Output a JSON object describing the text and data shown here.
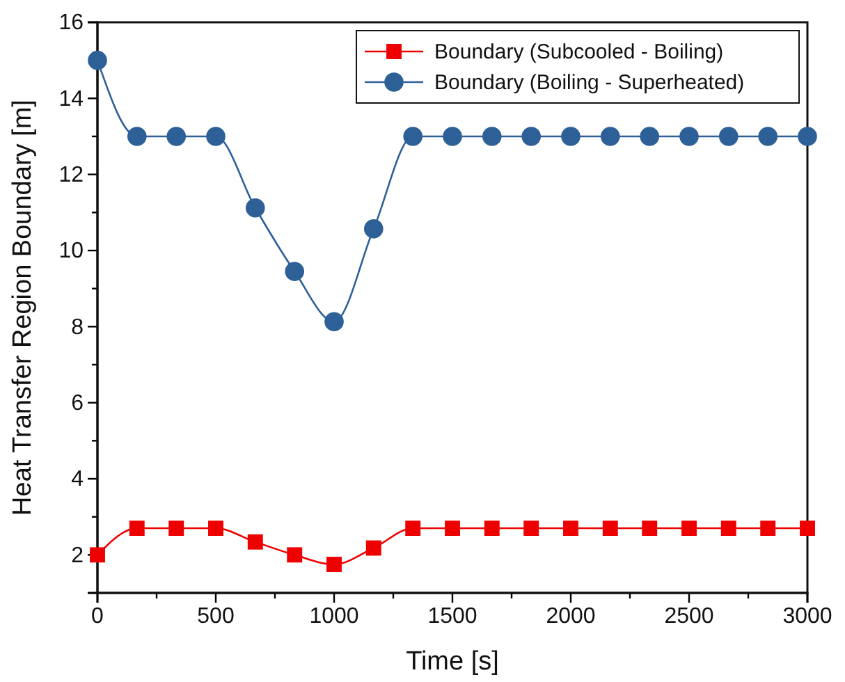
{
  "chart_data": {
    "type": "line",
    "xlabel": "Time [s]",
    "ylabel": "Heat Transfer Region Boundary [m]",
    "xlim": [
      0,
      3000
    ],
    "ylim": [
      1,
      16
    ],
    "xticks": [
      0,
      {
        "value": 250,
        "label": null
      },
      500,
      {
        "value": 750,
        "label": null
      },
      1000,
      {
        "value": 1250,
        "label": null
      },
      1500,
      {
        "value": 1750,
        "label": null
      },
      2000,
      {
        "value": 2250,
        "label": null
      },
      2500,
      {
        "value": 2750,
        "label": null
      },
      3000
    ],
    "yticks": [
      {
        "value": 1,
        "label": null
      },
      2,
      {
        "value": 3,
        "label": null
      },
      4,
      {
        "value": 5,
        "label": null
      },
      6,
      {
        "value": 7,
        "label": null
      },
      8,
      {
        "value": 9,
        "label": null
      },
      10,
      {
        "value": 11,
        "label": null
      },
      12,
      {
        "value": 13,
        "label": null
      },
      14,
      {
        "value": 15,
        "label": null
      },
      16
    ],
    "legend": "top right",
    "line_style": "solid",
    "grid": false,
    "series": [
      {
        "name": "Boundary (Subcooled - Boiling)",
        "color": "#ee0000",
        "marker": "square",
        "x": [
          0,
          167,
          333,
          500,
          667,
          833,
          1000,
          1167,
          1333,
          1500,
          1667,
          1833,
          2000,
          2167,
          2333,
          2500,
          2667,
          2833,
          3000
        ],
        "values": [
          2.0,
          2.7,
          2.7,
          2.7,
          2.34,
          2.0,
          1.75,
          2.18,
          2.7,
          2.7,
          2.7,
          2.7,
          2.7,
          2.7,
          2.7,
          2.7,
          2.7,
          2.7,
          2.7
        ]
      },
      {
        "name": "Boundary (Boiling - Superheated)",
        "color": "#2e6098",
        "marker": "circle",
        "x": [
          0,
          167,
          333,
          500,
          667,
          833,
          1000,
          1167,
          1333,
          1500,
          1667,
          1833,
          2000,
          2167,
          2333,
          2500,
          2667,
          2833,
          3000
        ],
        "values": [
          15.0,
          13.0,
          13.0,
          13.0,
          11.12,
          9.45,
          8.13,
          10.57,
          13.0,
          13.0,
          13.0,
          13.0,
          13.0,
          13.0,
          13.0,
          13.0,
          13.0,
          13.0,
          13.0
        ]
      }
    ]
  }
}
